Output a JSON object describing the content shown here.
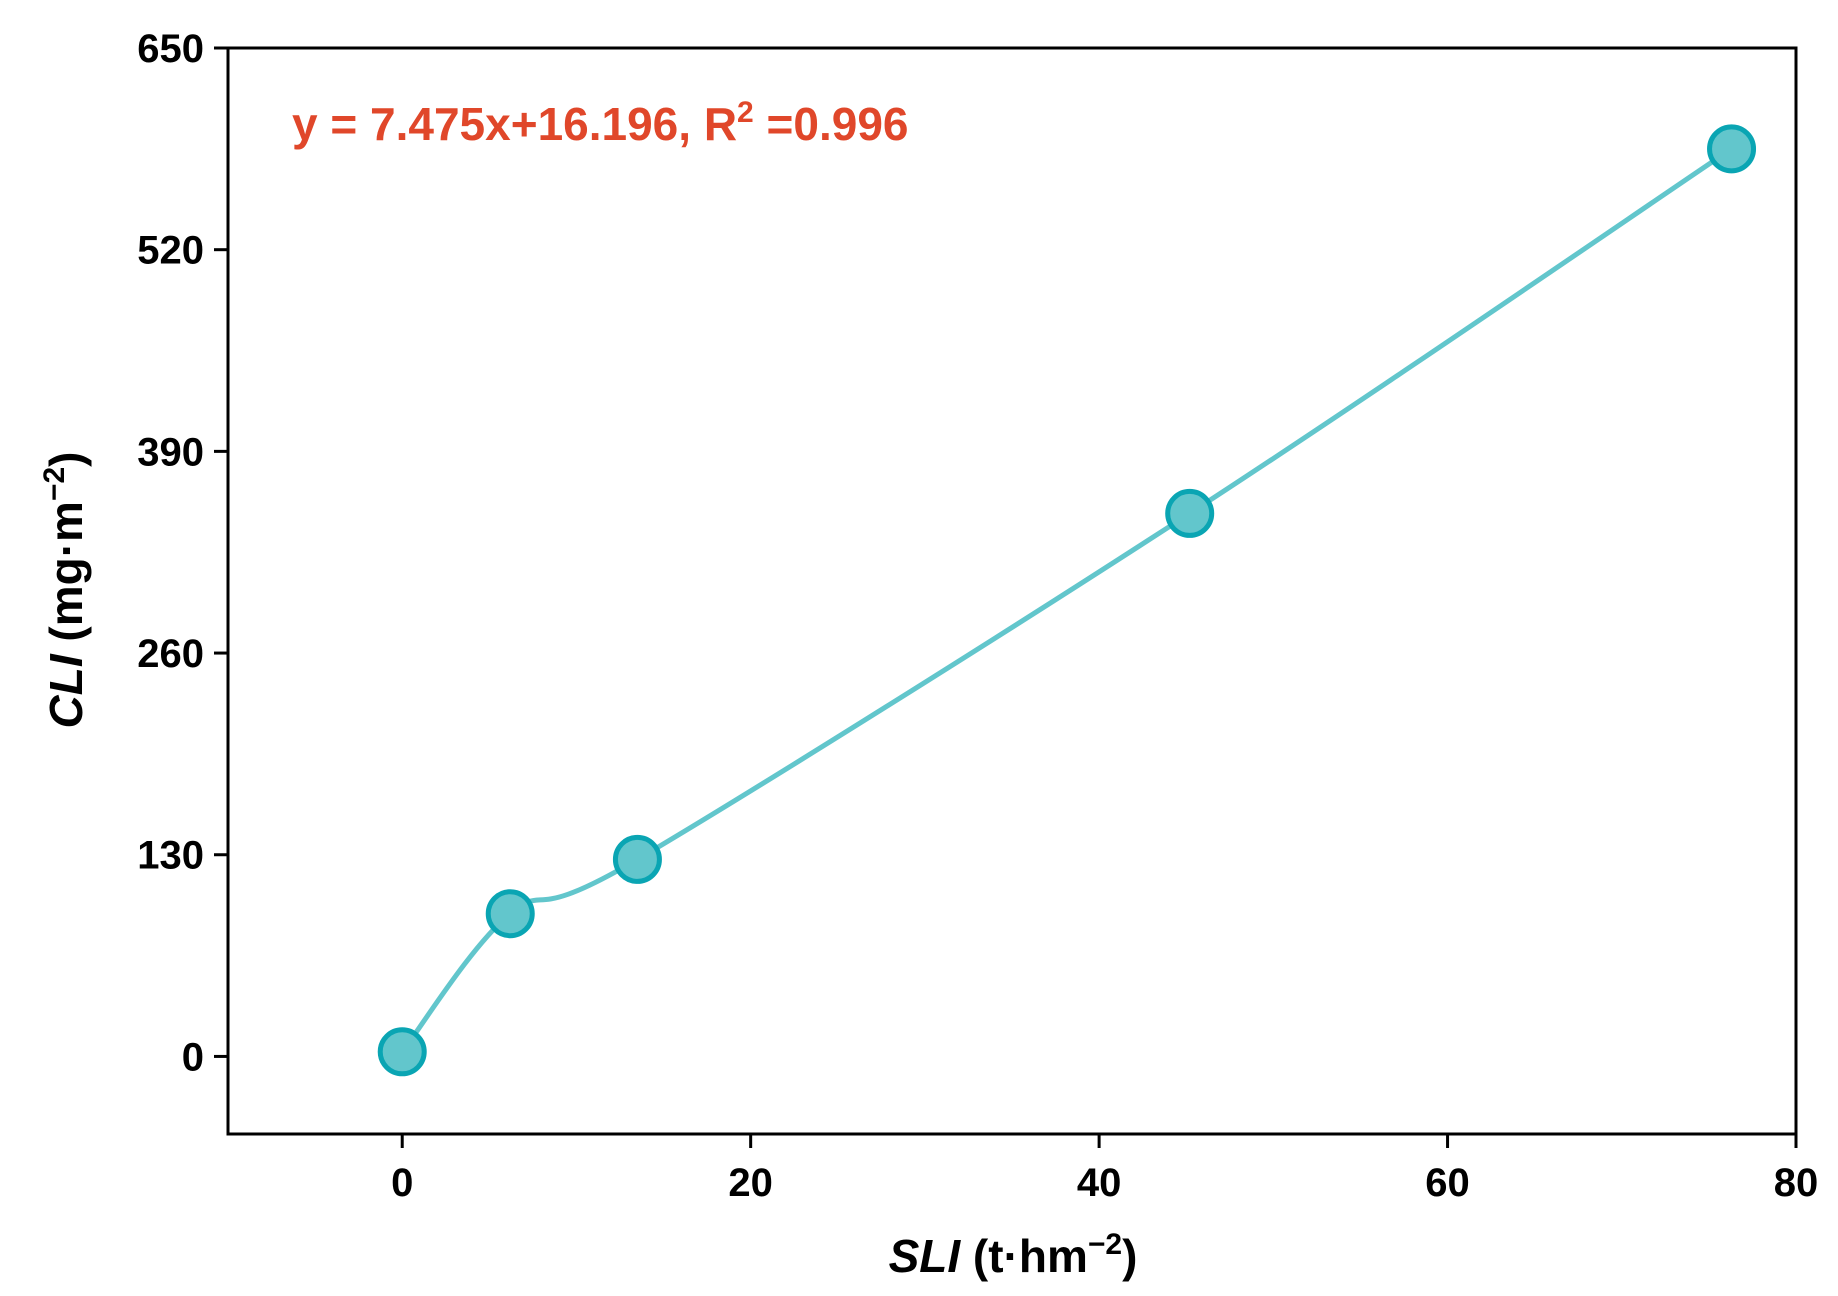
{
  "chart_data": {
    "type": "line",
    "smooth": true,
    "x_axis": {
      "title_italic": "SLI",
      "title_unit_prefix": " (t·hm",
      "title_unit_exp": "−2",
      "title_unit_suffix": ")",
      "range": [
        -10,
        80
      ],
      "ticks": [
        0,
        20,
        40,
        60,
        80
      ],
      "tick_labels": [
        "0",
        "20",
        "40",
        "60",
        "80"
      ]
    },
    "y_axis": {
      "title_italic": "CLI",
      "title_unit_prefix": " (mg·m",
      "title_unit_exp": "−2",
      "title_unit_suffix": ")",
      "range": [
        -50,
        650
      ],
      "ticks": [
        0,
        130,
        260,
        390,
        520,
        650
      ],
      "tick_labels": [
        "0",
        "130",
        "260",
        "390",
        "520",
        "650"
      ]
    },
    "series": [
      {
        "x": [
          0,
          6.2,
          13.5,
          45.2,
          76.3
        ],
        "y": [
          3,
          92,
          127,
          350,
          585
        ]
      }
    ],
    "annotation": {
      "equation_main": "y = 7.475x+16.196, R",
      "equation_sup": "2",
      "equation_tail": " =0.996",
      "color": "#e0472a"
    },
    "colors": {
      "line": "#62c6cc",
      "marker_fill": "#62c6cc",
      "marker_stroke": "#0aa5b3",
      "axis": "#000000"
    },
    "grid": false,
    "legend": "none"
  }
}
